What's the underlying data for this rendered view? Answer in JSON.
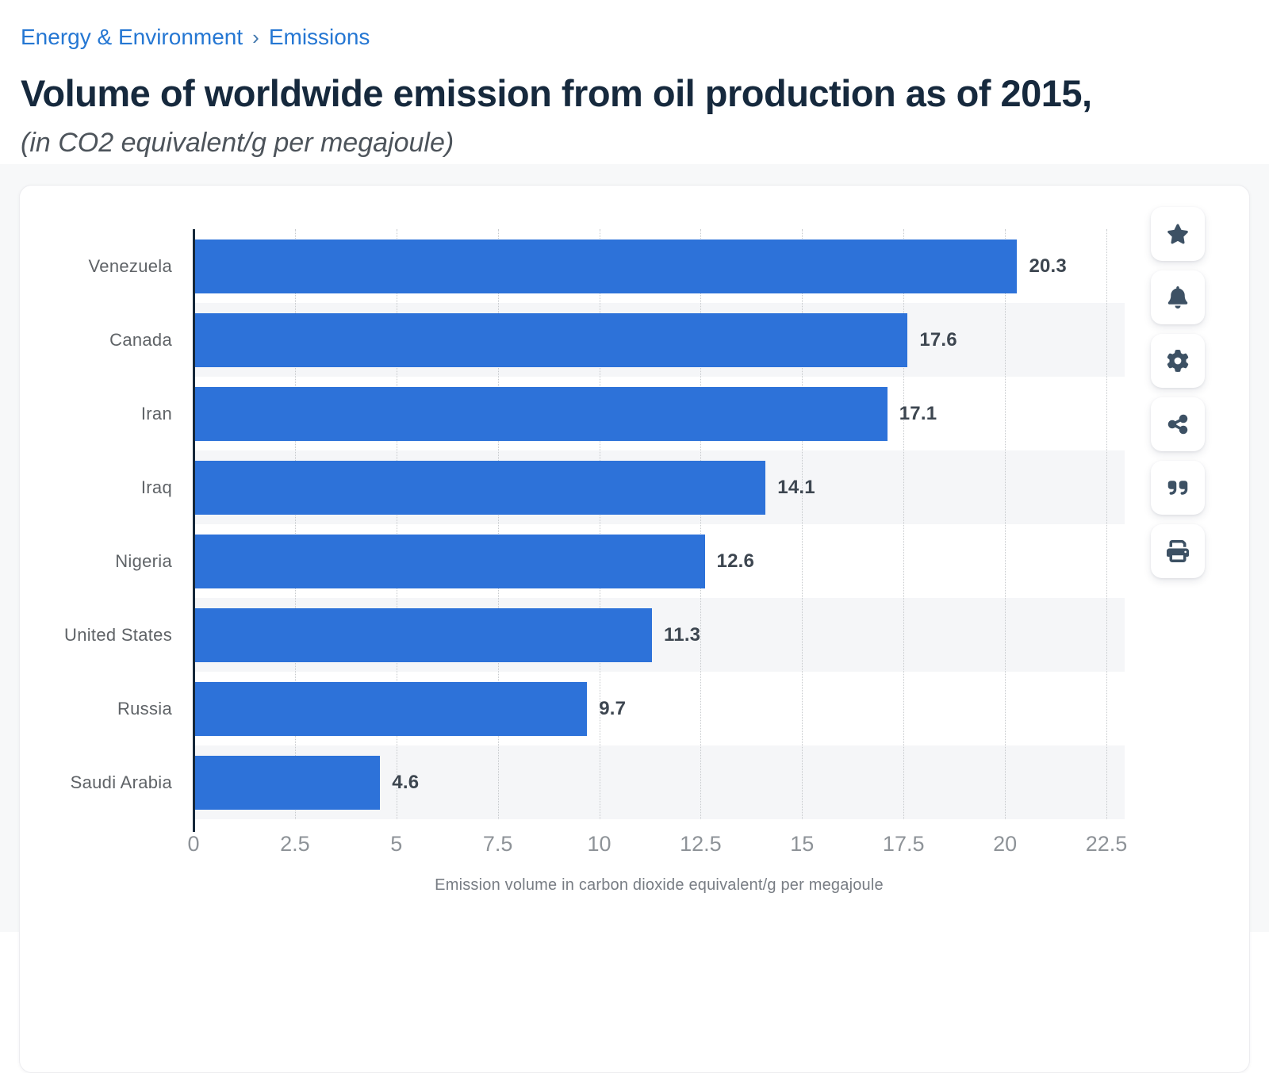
{
  "breadcrumb": {
    "items": [
      {
        "label": "Energy & Environment"
      },
      {
        "label": "Emissions"
      }
    ],
    "separator": "›"
  },
  "header": {
    "title": "Volume of worldwide emission from oil production as of 2015,",
    "subtitle": "(in CO2 equivalent/g per megajoule)"
  },
  "chart_data": {
    "type": "bar",
    "orientation": "horizontal",
    "title": "Volume of worldwide emission from oil production as of 2015,",
    "subtitle": "(in CO2 equivalent/g per megajoule)",
    "categories": [
      "Venezuela",
      "Canada",
      "Iran",
      "Iraq",
      "Nigeria",
      "United States",
      "Russia",
      "Saudi Arabia"
    ],
    "values": [
      20.3,
      17.6,
      17.1,
      14.1,
      12.6,
      11.3,
      9.7,
      4.6
    ],
    "value_labels": [
      "20.3",
      "17.6",
      "17.1",
      "14.1",
      "12.6",
      "11.3",
      "9.7",
      "4.6"
    ],
    "xlabel": "Emission volume in carbon dioxide equivalent/g per megajoule",
    "ylabel": "",
    "xtick_labels": [
      "0",
      "2.5",
      "5",
      "7.5",
      "10",
      "12.5",
      "15",
      "17.5",
      "20",
      "22.5"
    ],
    "xticks": [
      0,
      2.5,
      5,
      7.5,
      10,
      12.5,
      15,
      17.5,
      20,
      22.5
    ],
    "xlim": [
      0,
      22.95
    ],
    "grid": "vertical-dotted",
    "legend": "none",
    "row_striping": "alternate",
    "colors": {
      "bar": "#2d72d9",
      "stripe": "#f5f6f8",
      "axis_line": "#16283a",
      "gridline": "#c6c9cc",
      "value_label": "#3d4650",
      "category_label": "#5f6367",
      "tick_label": "#8e9398"
    }
  },
  "toolbar": {
    "buttons": [
      {
        "icon": "star-icon"
      },
      {
        "icon": "bell-icon"
      },
      {
        "icon": "gear-icon"
      },
      {
        "icon": "share-icon"
      },
      {
        "icon": "quote-icon"
      },
      {
        "icon": "print-icon"
      }
    ]
  }
}
